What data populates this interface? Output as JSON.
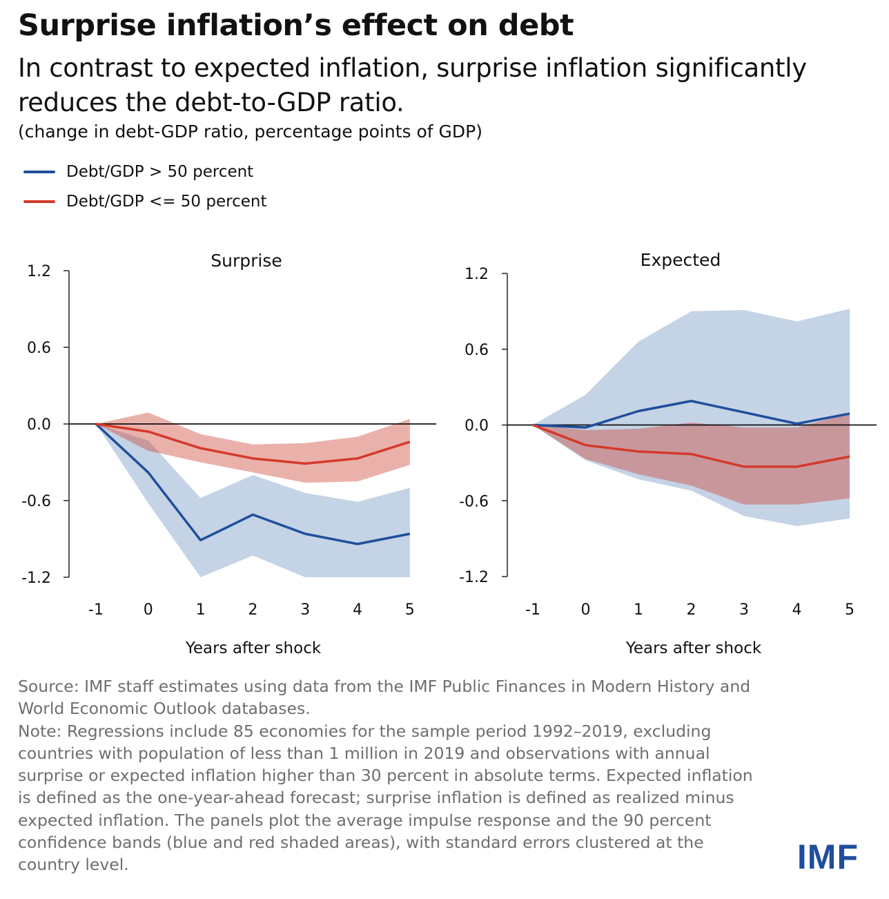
{
  "title": "Surprise inflation’s effect on debt",
  "subtitle": "In contrast to expected inflation, surprise inflation significantly reduces the debt-to-GDP ratio.",
  "units": "(change in debt-GDP ratio, percentage points of GDP)",
  "legend": [
    {
      "label": "Debt/GDP > 50 percent",
      "color": "#1f4e9c"
    },
    {
      "label": "Debt/GDP <= 50 percent",
      "color": "#d43a2a"
    }
  ],
  "colors": {
    "blue_line": "#1f4e9c",
    "red_line": "#d43a2a",
    "blue_band": "#c4d3e5",
    "red_band": "rgba(205,70,55,0.42)"
  },
  "chart_data": [
    {
      "type": "line",
      "title": "Surprise",
      "xlabel": "Years after shock",
      "ylabel": "",
      "x": [
        -1,
        0,
        1,
        2,
        3,
        4,
        5
      ],
      "x_tick_labels": [
        "-1",
        "0",
        "1",
        "2",
        "3",
        "4",
        "5"
      ],
      "ylim": [
        -1.2,
        1.2
      ],
      "y_tick_labels": [
        "1.2",
        "0.6",
        "0.0",
        "-0.6",
        "-1.2"
      ],
      "y_ticks": [
        1.2,
        0.6,
        0.0,
        -0.6,
        -1.2
      ],
      "series": [
        {
          "name": "Debt/GDP > 50 percent",
          "color": "#1f4e9c",
          "values": [
            0,
            -0.38,
            -0.91,
            -0.71,
            -0.86,
            -0.94,
            -0.86
          ],
          "band_upper": [
            0,
            -0.13,
            -0.58,
            -0.4,
            -0.54,
            -0.61,
            -0.5
          ],
          "band_lower": [
            0,
            -0.62,
            -1.2,
            -1.03,
            -1.2,
            -1.2,
            -1.2
          ]
        },
        {
          "name": "Debt/GDP <= 50 percent",
          "color": "#d43a2a",
          "values": [
            0,
            -0.06,
            -0.19,
            -0.27,
            -0.31,
            -0.27,
            -0.14
          ],
          "band_upper": [
            0,
            0.09,
            -0.08,
            -0.16,
            -0.15,
            -0.1,
            0.04
          ],
          "band_lower": [
            0,
            -0.21,
            -0.3,
            -0.38,
            -0.46,
            -0.45,
            -0.32
          ]
        }
      ]
    },
    {
      "type": "line",
      "title": "Expected",
      "xlabel": "Years after shock",
      "ylabel": "",
      "x": [
        -1,
        0,
        1,
        2,
        3,
        4,
        5
      ],
      "x_tick_labels": [
        "-1",
        "0",
        "1",
        "2",
        "3",
        "4",
        "5"
      ],
      "ylim": [
        -1.2,
        1.2
      ],
      "y_tick_labels": [
        "1.2",
        "0.6",
        "0.0",
        "-0.6",
        "-1.2"
      ],
      "y_ticks": [
        1.2,
        0.6,
        0.0,
        -0.6,
        -1.2
      ],
      "series": [
        {
          "name": "Debt/GDP > 50 percent",
          "color": "#1f4e9c",
          "values": [
            0,
            -0.02,
            0.11,
            0.19,
            0.1,
            0.01,
            0.09
          ],
          "band_upper": [
            0,
            0.24,
            0.66,
            0.9,
            0.91,
            0.82,
            0.92
          ],
          "band_lower": [
            0,
            -0.28,
            -0.43,
            -0.52,
            -0.72,
            -0.8,
            -0.74
          ]
        },
        {
          "name": "Debt/GDP <= 50 percent",
          "color": "#d43a2a",
          "values": [
            0,
            -0.16,
            -0.21,
            -0.23,
            -0.33,
            -0.33,
            -0.25
          ],
          "band_upper": [
            0,
            -0.04,
            -0.03,
            0.02,
            -0.02,
            -0.02,
            0.09
          ],
          "band_lower": [
            0,
            -0.27,
            -0.39,
            -0.48,
            -0.63,
            -0.63,
            -0.58
          ]
        }
      ]
    }
  ],
  "notes": {
    "source": "Source: IMF staff estimates using data from the IMF Public Finances in Modern History and World Economic Outlook databases.",
    "note": "Note: Regressions include 85 economies for the sample period 1992–2019, excluding countries with population of less than 1 million in 2019 and observations with annual surprise or expected inflation higher than 30 percent in absolute terms. Expected inflation is defined as the one-year-ahead forecast; surprise inflation is defined as realized minus expected inflation. The panels plot the average impulse response and the 90 percent confidence bands (blue and red shaded areas), with standard errors clustered at the country level."
  },
  "logo": {
    "text": "IMF",
    "color": "#1f4e9c"
  }
}
